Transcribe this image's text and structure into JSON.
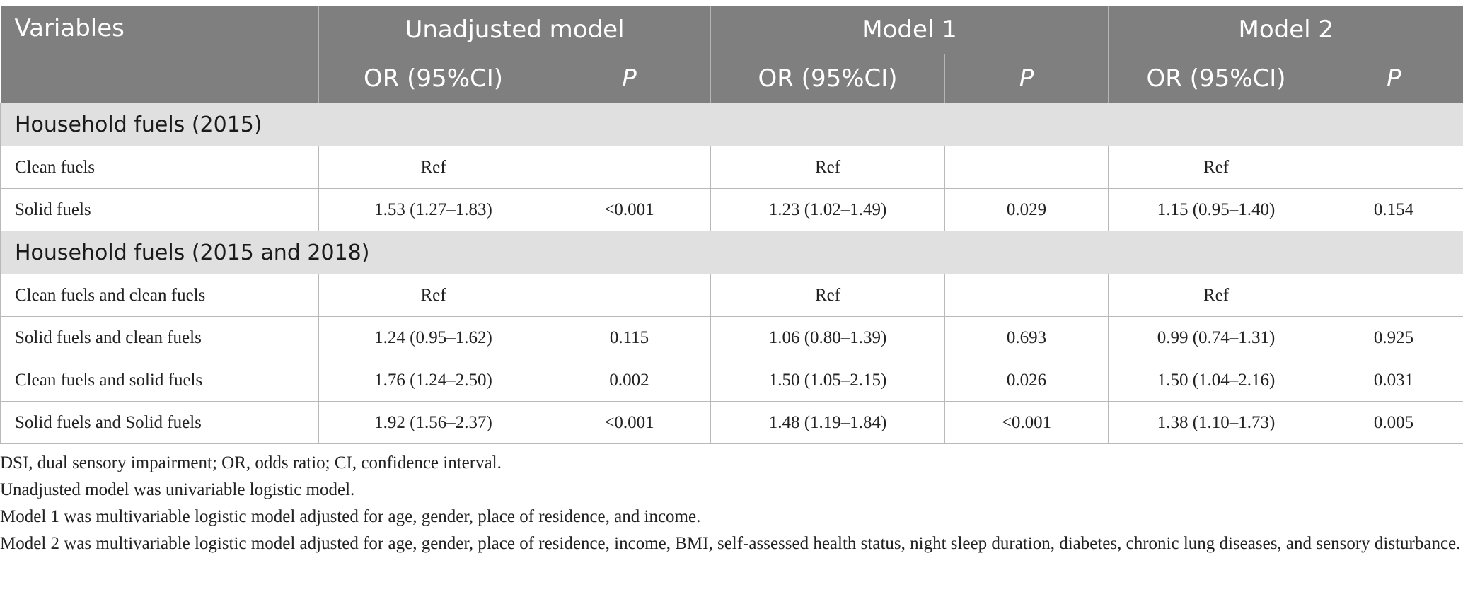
{
  "header": {
    "variables": "Variables",
    "groups": [
      "Unadjusted model",
      "Model 1",
      "Model 2"
    ],
    "sub": [
      "OR (95%CI)",
      "P",
      "OR (95%CI)",
      "P",
      "OR (95%CI)",
      "P"
    ]
  },
  "sections": [
    {
      "title": "Household fuels (2015)",
      "rows": [
        {
          "label": "Clean fuels",
          "cells": [
            "Ref",
            "",
            "Ref",
            "",
            "Ref",
            ""
          ]
        },
        {
          "label": "Solid fuels",
          "cells": [
            "1.53 (1.27–1.83)",
            "<0.001",
            "1.23 (1.02–1.49)",
            "0.029",
            "1.15 (0.95–1.40)",
            "0.154"
          ]
        }
      ]
    },
    {
      "title": "Household fuels (2015 and 2018)",
      "rows": [
        {
          "label": "Clean fuels and clean fuels",
          "cells": [
            "Ref",
            "",
            "Ref",
            "",
            "Ref",
            ""
          ]
        },
        {
          "label": "Solid fuels and clean fuels",
          "cells": [
            "1.24 (0.95–1.62)",
            "0.115",
            "1.06 (0.80–1.39)",
            "0.693",
            "0.99 (0.74–1.31)",
            "0.925"
          ]
        },
        {
          "label": "Clean fuels and solid fuels",
          "cells": [
            "1.76 (1.24–2.50)",
            "0.002",
            "1.50 (1.05–2.15)",
            "0.026",
            "1.50 (1.04–2.16)",
            "0.031"
          ]
        },
        {
          "label": "Solid fuels and Solid fuels",
          "cells": [
            "1.92 (1.56–2.37)",
            "<0.001",
            "1.48 (1.19–1.84)",
            "<0.001",
            "1.38 (1.10–1.73)",
            "0.005"
          ]
        }
      ]
    }
  ],
  "notes": [
    "DSI, dual sensory impairment; OR, odds ratio; CI, confidence interval.",
    "Unadjusted model was univariable logistic model.",
    "Model 1 was multivariable logistic model adjusted for age, gender, place of residence, and income.",
    "Model 2 was multivariable logistic model adjusted for age, gender, place of residence, income, BMI, self-assessed health status, night sleep duration, diabetes, chronic lung diseases, and sensory disturbance."
  ]
}
